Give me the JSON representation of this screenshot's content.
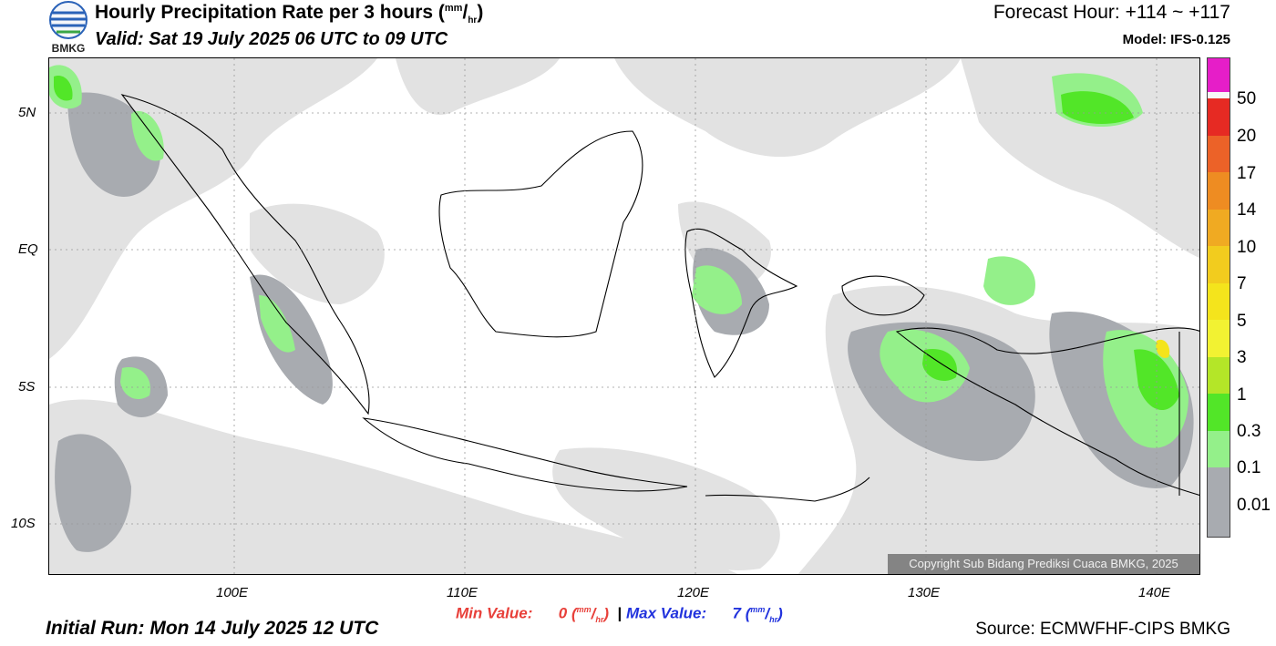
{
  "header": {
    "logo_text": "BMKG",
    "title": "Hourly Precipitation Rate per 3 hours (",
    "title_unit_num": "mm",
    "title_unit_den": "hr",
    "title_end": ")",
    "valid": "Valid: Sat 19 July 2025 06 UTC to 09 UTC",
    "forecast_hour": "Forecast Hour: +114 ~ +117",
    "model": "Model: IFS-0.125"
  },
  "map": {
    "lat_labels": [
      "5N",
      "EQ",
      "5S",
      "10S"
    ],
    "lon_labels": [
      "100E",
      "110E",
      "120E",
      "130E",
      "140E"
    ],
    "copyright": "Copyright Sub Bidang Prediksi Cuaca BMKG, 2025"
  },
  "colorbar": {
    "labels": [
      "50",
      "20",
      "17",
      "14",
      "10",
      "7",
      "5",
      "3",
      "1",
      "0.3",
      "0.1",
      "0.01"
    ],
    "colors": [
      "#e61ec8",
      "#e62a23",
      "#ec6228",
      "#ee8c22",
      "#f0aa22",
      "#f2cc1e",
      "#f4e41c",
      "#f2f232",
      "#b4e628",
      "#52e628",
      "#94f08a",
      "#a8abb0",
      "#e4e4e4"
    ]
  },
  "footer": {
    "min_label": "Min Value:",
    "min_value": "0",
    "max_label": "Max Value:",
    "max_value": "7",
    "unit_num": "mm",
    "unit_den": "hr",
    "separator": "|",
    "initial_run": "Initial Run: Mon 14 July 2025 12 UTC",
    "source": "Source: ECMWFHF-CIPS BMKG"
  }
}
